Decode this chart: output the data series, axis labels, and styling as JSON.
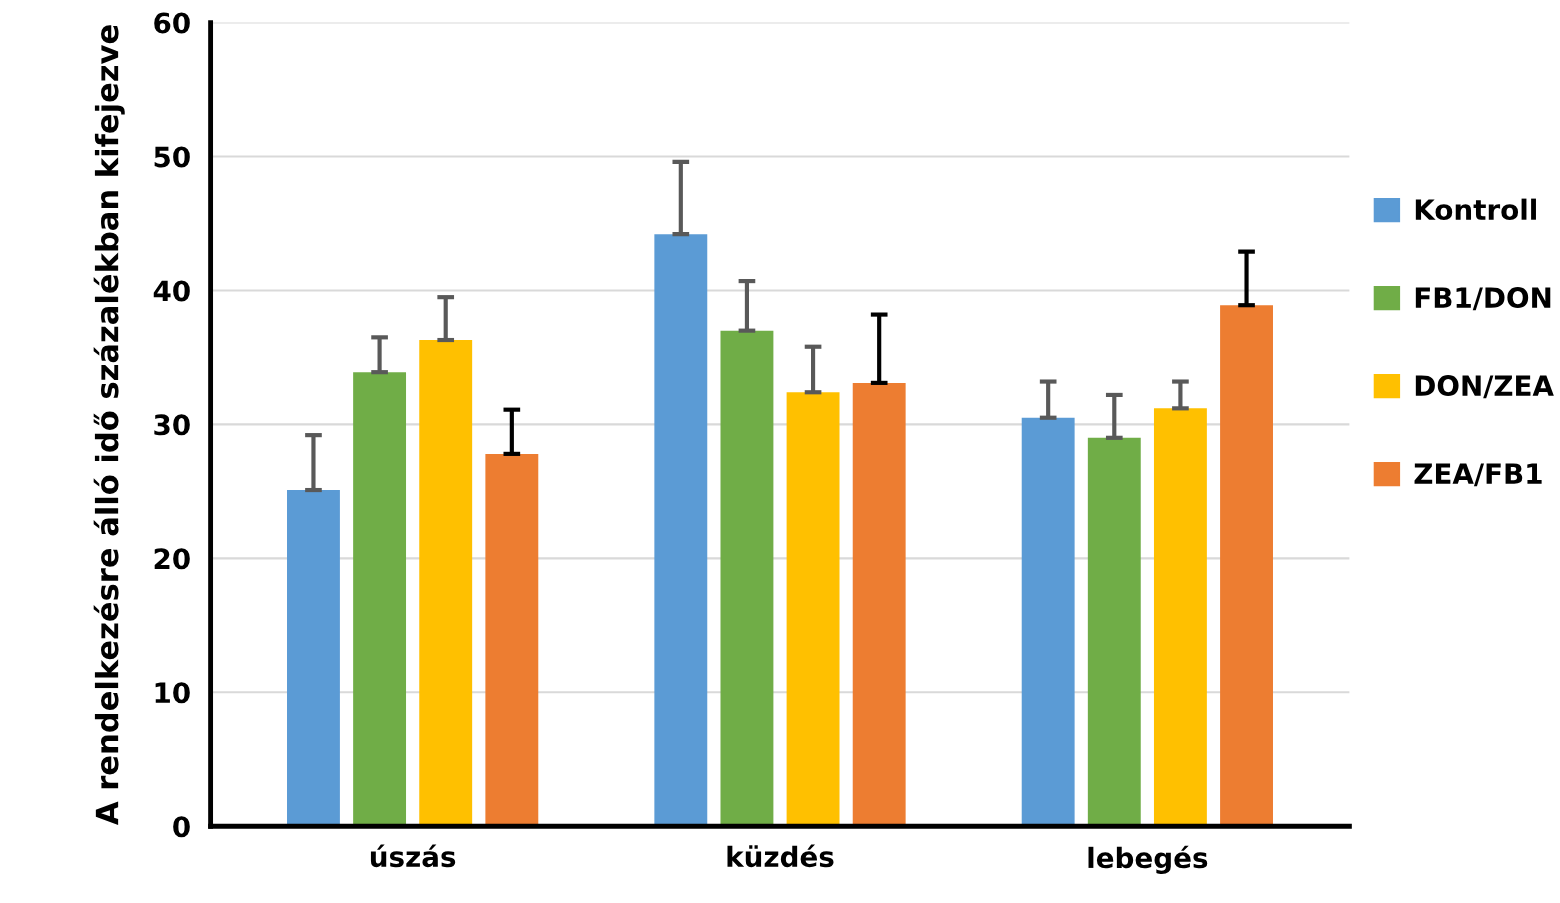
{
  "chart_data": {
    "type": "bar",
    "ylabel": "A rendelkezésre álló idő százalékban kifejezve",
    "categories": [
      "úszás",
      "küzdés",
      "lebegés"
    ],
    "series": [
      {
        "name": "Kontroll",
        "color": "#5b9bd5",
        "values": [
          25.1,
          44.2,
          30.5
        ],
        "errors": [
          [
            25.1,
            29.2
          ],
          [
            44.2,
            49.6
          ],
          [
            30.5,
            33.2
          ]
        ]
      },
      {
        "name": "FB1/DON",
        "color": "#70ad47",
        "values": [
          33.9,
          37.0,
          29.0
        ],
        "errors": [
          [
            33.9,
            36.5
          ],
          [
            37.0,
            40.7
          ],
          [
            29.0,
            32.2
          ]
        ]
      },
      {
        "name": "DON/ZEA",
        "color": "#ffc000",
        "values": [
          36.3,
          32.4,
          31.2
        ],
        "errors": [
          [
            36.3,
            39.5
          ],
          [
            32.4,
            35.8
          ],
          [
            31.2,
            33.2
          ]
        ]
      },
      {
        "name": "ZEA/FB1",
        "color": "#ed7d31",
        "values": [
          27.8,
          33.1,
          38.9
        ],
        "errors": [
          [
            27.8,
            31.1
          ],
          [
            33.1,
            38.2
          ],
          [
            38.9,
            42.9
          ]
        ]
      }
    ],
    "ylim": [
      0,
      60
    ],
    "yticks": [
      0,
      10,
      20,
      30,
      40,
      50,
      60
    ],
    "grid": "y",
    "legend": "right"
  }
}
